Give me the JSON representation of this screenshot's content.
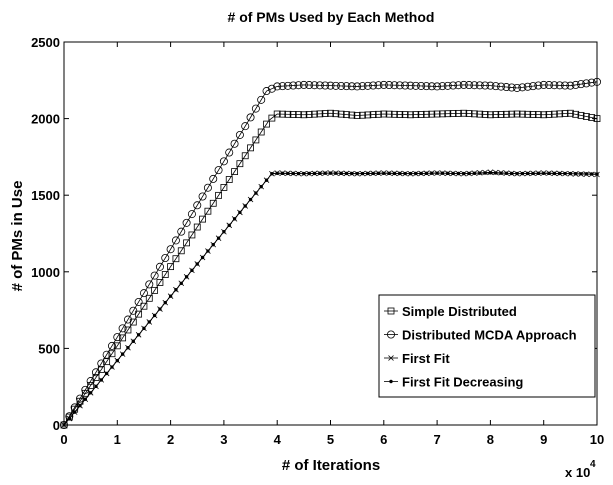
{
  "chart_data": {
    "type": "line",
    "title": "# of PMs Used by Each Method",
    "xlabel": "# of Iterations",
    "ylabel": "# of PMs in Use",
    "x_multiplier_label": "x 10",
    "x_multiplier_exponent": "4",
    "xlim": [
      0,
      10
    ],
    "ylim": [
      0,
      2500
    ],
    "xticks": [
      0,
      1,
      2,
      3,
      4,
      5,
      6,
      7,
      8,
      9,
      10
    ],
    "yticks": [
      0,
      500,
      1000,
      1500,
      2000,
      2500
    ],
    "grid": false,
    "legend_position": "bottom-right",
    "series": [
      {
        "name": "Simple Distributed",
        "marker": "square",
        "x": [
          0,
          3.85,
          4.0,
          4.5,
          5.0,
          5.5,
          6.0,
          6.5,
          7.0,
          7.5,
          8.0,
          8.5,
          9.0,
          9.5,
          10.0
        ],
        "y": [
          0,
          1990,
          2030,
          2025,
          2035,
          2020,
          2030,
          2025,
          2030,
          2035,
          2025,
          2030,
          2025,
          2035,
          2000
        ]
      },
      {
        "name": "Distributed MCDA Approach",
        "marker": "circle",
        "x": [
          0,
          3.8,
          4.0,
          4.5,
          5.0,
          5.5,
          6.0,
          6.5,
          7.0,
          7.5,
          8.0,
          8.5,
          9.0,
          9.5,
          10.0
        ],
        "y": [
          0,
          2180,
          2210,
          2220,
          2215,
          2210,
          2220,
          2215,
          2210,
          2220,
          2215,
          2200,
          2220,
          2215,
          2240
        ]
      },
      {
        "name": "First Fit",
        "marker": "x",
        "x": [
          0,
          3.9,
          4.0,
          4.5,
          5.0,
          5.5,
          6.0,
          6.5,
          7.0,
          7.5,
          8.0,
          8.5,
          9.0,
          9.5,
          10.0
        ],
        "y": [
          0,
          1640,
          1645,
          1640,
          1645,
          1640,
          1645,
          1640,
          1645,
          1640,
          1650,
          1640,
          1645,
          1640,
          1635
        ]
      },
      {
        "name": "First Fit Decreasing",
        "marker": "dot",
        "x": [
          0,
          3.9,
          4.0,
          4.5,
          5.0,
          5.5,
          6.0,
          6.5,
          7.0,
          7.5,
          8.0,
          8.5,
          9.0,
          9.5,
          10.0
        ],
        "y": [
          0,
          1640,
          1643,
          1641,
          1644,
          1641,
          1643,
          1641,
          1644,
          1641,
          1646,
          1641,
          1643,
          1641,
          1638
        ]
      }
    ]
  }
}
